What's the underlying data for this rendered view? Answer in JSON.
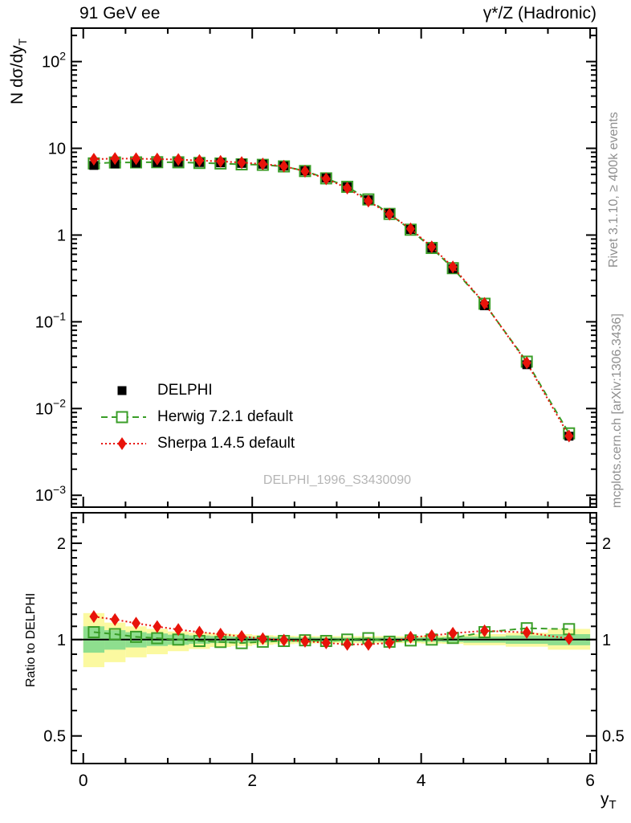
{
  "header": {
    "left": "91 GeV ee",
    "right": "γ*/Z (Hadronic)"
  },
  "side_notes": {
    "top_right": "Rivet 3.1.10, ≥ 400k events",
    "bottom_right": "mcplots.cern.ch [arXiv:1306.3436]"
  },
  "watermark": "DELPHI_1996_S3430090",
  "chart_data": {
    "type": "line",
    "title_left": "91 GeV ee",
    "title_right": "γ*/Z (Hadronic)",
    "ylabel_main": "N dσ/dy",
    "ylabel_sub": "T",
    "xlabel_main": "y",
    "xlabel_sub": "T",
    "ratio_ylabel": "Ratio to DELPHI",
    "x_range": [
      -0.14,
      6.075
    ],
    "main_y_range": [
      0.00073,
      243
    ],
    "ratio_y_range": [
      0.41,
      2.49
    ],
    "x_major_ticks": [
      0,
      2,
      4,
      6
    ],
    "x_tick_labels": [
      "0",
      "2",
      "4",
      "6"
    ],
    "x_minor_step": 0.5,
    "main_y_ticks": [
      {
        "v": 100,
        "label": "10^2"
      },
      {
        "v": 10,
        "label": "10"
      },
      {
        "v": 1,
        "label": "1"
      },
      {
        "v": 0.1,
        "label": "10^−1"
      },
      {
        "v": 0.01,
        "label": "10^−2"
      },
      {
        "v": 0.001,
        "label": "10^−3"
      }
    ],
    "ratio_y_ticks": [
      {
        "v": 2,
        "label": "2"
      },
      {
        "v": 1,
        "label": "1"
      },
      {
        "v": 0.5,
        "label": "0.5"
      }
    ],
    "ratio_y_minor_ticks": [
      0.45,
      0.6,
      0.7,
      0.8,
      0.9,
      1.1,
      1.2,
      1.3,
      1.4,
      1.5,
      1.6,
      1.7,
      1.8,
      1.9,
      2.1,
      2.2,
      2.3,
      2.4
    ],
    "bin_edges": [
      0,
      0.25,
      0.5,
      0.75,
      1.0,
      1.25,
      1.5,
      1.75,
      2.0,
      2.25,
      2.5,
      2.75,
      3.0,
      3.25,
      3.5,
      3.75,
      4.0,
      4.25,
      4.5,
      5.0,
      5.5,
      6.0
    ],
    "x": [
      0.125,
      0.375,
      0.625,
      0.875,
      1.125,
      1.375,
      1.625,
      1.875,
      2.125,
      2.375,
      2.625,
      2.875,
      3.125,
      3.375,
      3.625,
      3.875,
      4.125,
      4.375,
      4.75,
      5.25,
      5.75
    ],
    "series": [
      {
        "name": "DELPHI",
        "role": "data",
        "marker": "filled-square",
        "line": "none",
        "color": "#000000",
        "values": [
          6.35,
          6.6,
          6.75,
          6.85,
          6.9,
          6.85,
          6.8,
          6.7,
          6.55,
          6.25,
          5.5,
          4.55,
          3.6,
          2.55,
          1.78,
          1.16,
          0.71,
          0.41,
          0.153,
          0.032,
          0.0048
        ]
      },
      {
        "name": "Herwig 7.2.1 default",
        "role": "mc",
        "marker": "open-square",
        "line": "dashed",
        "color": "#3a9e28",
        "ratio_to_data": [
          1.055,
          1.04,
          1.02,
          1.01,
          1.0,
          0.99,
          0.983,
          0.975,
          0.985,
          0.99,
          0.995,
          0.99,
          1.0,
          1.01,
          0.985,
          0.994,
          1.0,
          1.012,
          1.055,
          1.085,
          1.078
        ]
      },
      {
        "name": "Sherpa 1.4.5 default",
        "role": "mc",
        "marker": "filled-diamond",
        "line": "dotted",
        "color": "#e8130a",
        "ratio_to_data": [
          1.18,
          1.155,
          1.125,
          1.098,
          1.075,
          1.055,
          1.04,
          1.023,
          1.007,
          0.996,
          0.988,
          0.977,
          0.966,
          0.966,
          0.977,
          1.017,
          1.029,
          1.047,
          1.065,
          1.053,
          1.006
        ]
      }
    ],
    "uncertainty_bands": {
      "yellow": {
        "color": "#fbf9a0",
        "lo": [
          0.82,
          0.85,
          0.88,
          0.9,
          0.92,
          0.935,
          0.948,
          0.955,
          0.963,
          0.968,
          0.972,
          0.974,
          0.975,
          0.975,
          0.975,
          0.975,
          0.972,
          0.97,
          0.96,
          0.95,
          0.93
        ],
        "hi": [
          1.21,
          1.13,
          1.1,
          1.08,
          1.06,
          1.05,
          1.045,
          1.04,
          1.032,
          1.028,
          1.026,
          1.025,
          1.025,
          1.025,
          1.025,
          1.025,
          1.028,
          1.03,
          1.04,
          1.05,
          1.08
        ]
      },
      "green": {
        "color": "#8ede8e",
        "lo": [
          0.91,
          0.93,
          0.945,
          0.955,
          0.963,
          0.97,
          0.975,
          0.978,
          0.981,
          0.983,
          0.984,
          0.985,
          0.986,
          0.986,
          0.986,
          0.986,
          0.984,
          0.982,
          0.978,
          0.97,
          0.96
        ],
        "hi": [
          1.1,
          1.07,
          1.055,
          1.045,
          1.036,
          1.03,
          1.026,
          1.022,
          1.019,
          1.017,
          1.016,
          1.015,
          1.014,
          1.014,
          1.014,
          1.014,
          1.016,
          1.018,
          1.022,
          1.03,
          1.04
        ]
      }
    },
    "legend_position": "left-middle",
    "grid": "off"
  }
}
